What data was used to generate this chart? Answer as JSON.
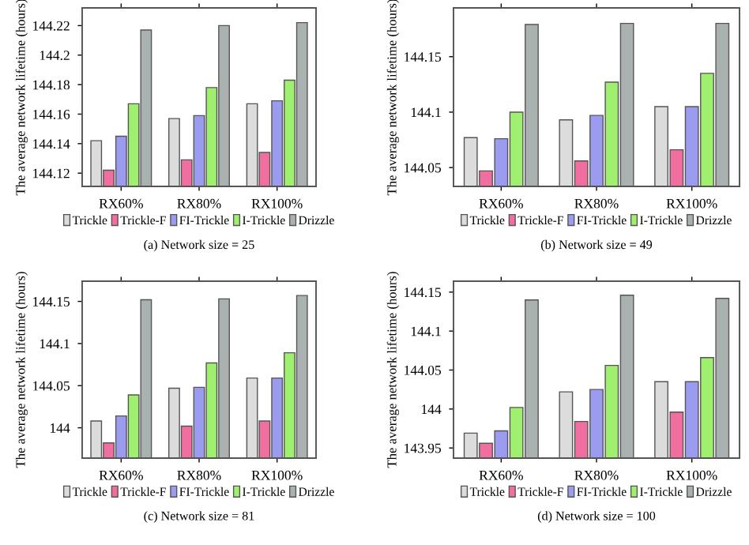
{
  "chart_data": [
    {
      "type": "bar",
      "categories": [
        "RX60%",
        "RX80%",
        "RX100%"
      ],
      "ylabel": "The average network lifetime (hours)",
      "ylim": [
        144.111,
        144.232
      ],
      "yticks": [
        144.12,
        144.14,
        144.16,
        144.18,
        144.2,
        144.22
      ],
      "legend": "bottom",
      "annotations": [
        "(a) Network size = 25"
      ],
      "series": [
        {
          "name": "Trickle",
          "color": "#dcdcdc",
          "values": [
            144.142,
            144.157,
            144.167
          ]
        },
        {
          "name": "Trickle-F",
          "color": "#f06ea0",
          "values": [
            144.122,
            144.129,
            144.134
          ]
        },
        {
          "name": "FI-Trickle",
          "color": "#9b9bf0",
          "values": [
            144.145,
            144.159,
            144.169
          ]
        },
        {
          "name": "I-Trickle",
          "color": "#a0f070",
          "values": [
            144.167,
            144.178,
            144.183
          ]
        },
        {
          "name": "Drizzle",
          "color": "#a9b2b0",
          "values": [
            144.217,
            144.22,
            144.222
          ]
        }
      ]
    },
    {
      "type": "bar",
      "categories": [
        "RX60%",
        "RX80%",
        "RX100%"
      ],
      "ylabel": "The average network lifetime (hours)",
      "ylim": [
        144.033,
        144.194
      ],
      "yticks": [
        144.05,
        144.1,
        144.15
      ],
      "legend": "bottom",
      "annotations": [
        "(b) Network size = 49"
      ],
      "series": [
        {
          "name": "Trickle",
          "color": "#dcdcdc",
          "values": [
            144.077,
            144.093,
            144.105
          ]
        },
        {
          "name": "Trickle-F",
          "color": "#f06ea0",
          "values": [
            144.047,
            144.056,
            144.066
          ]
        },
        {
          "name": "FI-Trickle",
          "color": "#9b9bf0",
          "values": [
            144.076,
            144.097,
            144.105
          ]
        },
        {
          "name": "I-Trickle",
          "color": "#a0f070",
          "values": [
            144.1,
            144.127,
            144.135
          ]
        },
        {
          "name": "Drizzle",
          "color": "#a9b2b0",
          "values": [
            144.179,
            144.18,
            144.18
          ]
        }
      ]
    },
    {
      "type": "bar",
      "categories": [
        "RX60%",
        "RX80%",
        "RX100%"
      ],
      "ylabel": "The average network lifetime (hours)",
      "ylim": [
        143.964,
        144.174
      ],
      "yticks": [
        144,
        144.05,
        144.1,
        144.15
      ],
      "legend": "bottom",
      "annotations": [
        "(c) Network size = 81"
      ],
      "series": [
        {
          "name": "Trickle",
          "color": "#dcdcdc",
          "values": [
            144.008,
            144.047,
            144.059
          ]
        },
        {
          "name": "Trickle-F",
          "color": "#f06ea0",
          "values": [
            143.982,
            144.002,
            144.008
          ]
        },
        {
          "name": "FI-Trickle",
          "color": "#9b9bf0",
          "values": [
            144.014,
            144.048,
            144.059
          ]
        },
        {
          "name": "I-Trickle",
          "color": "#a0f070",
          "values": [
            144.039,
            144.077,
            144.089
          ]
        },
        {
          "name": "Drizzle",
          "color": "#a9b2b0",
          "values": [
            144.152,
            144.153,
            144.157
          ]
        }
      ]
    },
    {
      "type": "bar",
      "categories": [
        "RX60%",
        "RX80%",
        "RX100%"
      ],
      "ylabel": "The average network lifetime (hours)",
      "ylim": [
        143.937,
        144.164
      ],
      "yticks": [
        143.95,
        144,
        144.05,
        144.1,
        144.15
      ],
      "legend": "bottom",
      "annotations": [
        "(d) Network size = 100"
      ],
      "series": [
        {
          "name": "Trickle",
          "color": "#dcdcdc",
          "values": [
            143.969,
            144.022,
            144.035
          ]
        },
        {
          "name": "Trickle-F",
          "color": "#f06ea0",
          "values": [
            143.956,
            143.984,
            143.996
          ]
        },
        {
          "name": "FI-Trickle",
          "color": "#9b9bf0",
          "values": [
            143.972,
            144.025,
            144.035
          ]
        },
        {
          "name": "I-Trickle",
          "color": "#a0f070",
          "values": [
            144.002,
            144.056,
            144.066
          ]
        },
        {
          "name": "Drizzle",
          "color": "#a9b2b0",
          "values": [
            144.14,
            144.146,
            144.142
          ]
        }
      ]
    }
  ]
}
